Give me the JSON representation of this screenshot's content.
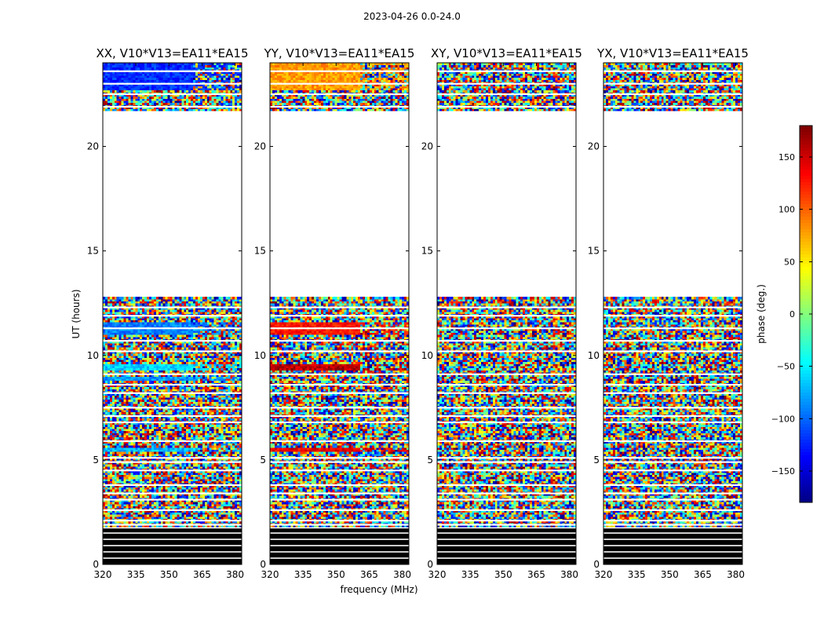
{
  "figure": {
    "suptitle": "2023-04-26 0.0-24.0",
    "xlabel": "frequency (MHz)",
    "ylabel": "UT (hours)",
    "colorbar_label": "phase (deg.)",
    "colorbar_ticks": [
      -150,
      -100,
      -50,
      0,
      50,
      100,
      150
    ],
    "colorbar_tick_labels": [
      "−150",
      "−100",
      "−50",
      "0",
      "50",
      "100",
      "150"
    ],
    "colorbar_range": [
      -180,
      180
    ],
    "colors": {
      "background": "#ffffff",
      "axis": "#000000",
      "flagged": "#000000"
    }
  },
  "chart_data": [
    {
      "type": "heatmap",
      "title": "XX, V10*V13=EA11*EA15",
      "xlabel": "frequency (MHz)",
      "ylabel": "UT (hours)",
      "xlim": [
        320,
        383
      ],
      "ylim": [
        0,
        24
      ],
      "xticks": [
        320,
        335,
        350,
        365,
        380
      ],
      "yticks": [
        0,
        5,
        10,
        15,
        20
      ],
      "value": "phase (deg.)",
      "coherent_bands": [
        {
          "t0": 22.7,
          "t1": 24.0,
          "phase": -120
        },
        {
          "t0": 11.0,
          "t1": 11.6,
          "phase": -90
        },
        {
          "t0": 9.3,
          "t1": 9.6,
          "phase": -60
        },
        {
          "t0": 8.8,
          "t1": 9.0,
          "phase": -80
        },
        {
          "t0": 5.4,
          "t1": 5.6,
          "phase": -70
        }
      ],
      "white_intervals": [
        [
          12.8,
          21.7
        ]
      ],
      "flagged_intervals": [
        [
          0.0,
          1.8
        ]
      ]
    },
    {
      "type": "heatmap",
      "title": "YY, V10*V13=EA11*EA15",
      "xlabel": "frequency (MHz)",
      "ylabel": "UT (hours)",
      "xlim": [
        320,
        383
      ],
      "ylim": [
        0,
        24
      ],
      "xticks": [
        320,
        335,
        350,
        365,
        380
      ],
      "yticks": [
        0,
        5,
        10,
        15,
        20
      ],
      "value": "phase (deg.)",
      "coherent_bands": [
        {
          "t0": 22.7,
          "t1": 24.0,
          "phase": 80
        },
        {
          "t0": 11.0,
          "t1": 11.6,
          "phase": 130
        },
        {
          "t0": 9.3,
          "t1": 9.6,
          "phase": 160
        },
        {
          "t0": 5.4,
          "t1": 5.6,
          "phase": 140
        }
      ],
      "white_intervals": [
        [
          12.8,
          21.7
        ]
      ],
      "flagged_intervals": [
        [
          0.0,
          1.8
        ]
      ]
    },
    {
      "type": "heatmap",
      "title": "XY, V10*V13=EA11*EA15",
      "xlabel": "frequency (MHz)",
      "ylabel": "UT (hours)",
      "xlim": [
        320,
        383
      ],
      "ylim": [
        0,
        24
      ],
      "xticks": [
        320,
        335,
        350,
        365,
        380
      ],
      "yticks": [
        0,
        5,
        10,
        15,
        20
      ],
      "value": "phase (deg.)",
      "coherent_bands": [],
      "white_intervals": [
        [
          12.8,
          21.7
        ]
      ],
      "flagged_intervals": [
        [
          0.0,
          1.8
        ]
      ]
    },
    {
      "type": "heatmap",
      "title": "YX, V10*V13=EA11*EA15",
      "xlabel": "frequency (MHz)",
      "ylabel": "UT (hours)",
      "xlim": [
        320,
        383
      ],
      "ylim": [
        0,
        24
      ],
      "xticks": [
        320,
        335,
        350,
        365,
        380
      ],
      "yticks": [
        0,
        5,
        10,
        15,
        20
      ],
      "value": "phase (deg.)",
      "coherent_bands": [],
      "white_intervals": [
        [
          12.8,
          21.7
        ]
      ],
      "flagged_intervals": [
        [
          0.0,
          1.8
        ]
      ]
    }
  ]
}
